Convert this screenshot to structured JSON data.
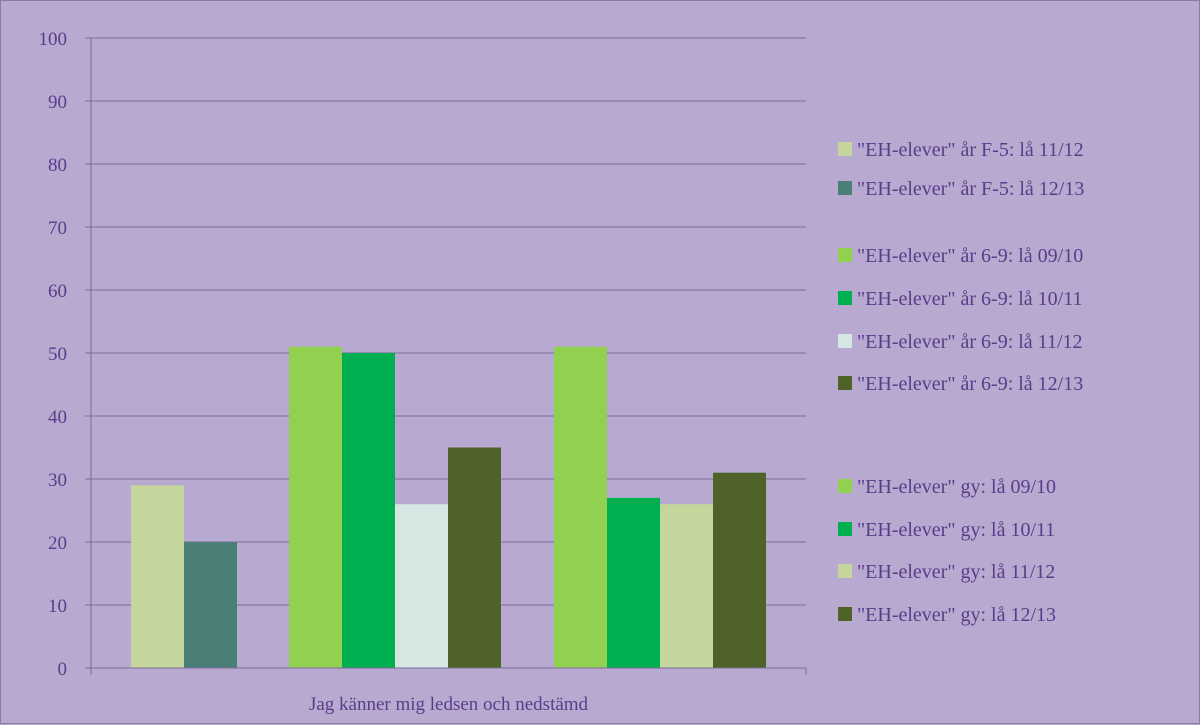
{
  "chart_data": {
    "type": "bar",
    "title": "",
    "xlabel": "",
    "ylabel": "",
    "ylim": [
      0,
      100
    ],
    "yticks": [
      0,
      10,
      20,
      30,
      40,
      50,
      60,
      70,
      80,
      90,
      100
    ],
    "categories": [
      "Jag känner mig ledsen och nedstämd"
    ],
    "grid": true,
    "legend_position": "right",
    "groups": [
      {
        "series": [
          {
            "name": "\"EH-elever\" år F-5: lå 11/12",
            "value": 29,
            "color": "#c4d69b"
          },
          {
            "name": "\"EH-elever\" år F-5: lå 12/13",
            "value": 20,
            "color": "#4a7f78"
          }
        ]
      },
      {
        "series": [
          {
            "name": "\"EH-elever\" år 6-9: lå 09/10",
            "value": 51,
            "color": "#92d050"
          },
          {
            "name": "\"EH-elever\" år 6-9: lå 10/11",
            "value": 50,
            "color": "#00b050"
          },
          {
            "name": "\"EH-elever\" år 6-9: lå 11/12",
            "value": 26,
            "color": "#d6e7e3"
          },
          {
            "name": "\"EH-elever\" år 6-9: lå 12/13",
            "value": 35,
            "color": "#4f6228"
          }
        ]
      },
      {
        "series": [
          {
            "name": "\"EH-elever\" gy: lå 09/10",
            "value": 51,
            "color": "#92d050"
          },
          {
            "name": "\"EH-elever\" gy: lå 10/11",
            "value": 27,
            "color": "#00b050"
          },
          {
            "name": "\"EH-elever\" gy: lå 11/12",
            "value": 26,
            "color": "#c4d69b"
          },
          {
            "name": "\"EH-elever\" gy: lå 12/13",
            "value": 31,
            "color": "#4f6228"
          }
        ]
      }
    ]
  },
  "colors": {
    "background": "#b8a9d0",
    "gridline": "#7d6c9c",
    "text": "#5a3d8a"
  }
}
